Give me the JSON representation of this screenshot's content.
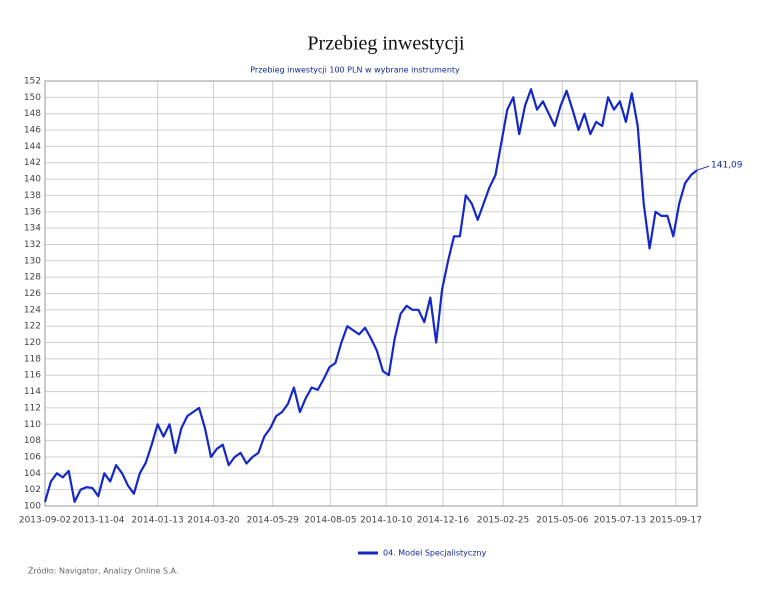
{
  "chart_data": {
    "type": "line",
    "title": "Przebieg inwestycji",
    "subtitle": "Przebieg inwestycji 100 PLN w wybrane instrumenty",
    "source": "Źródło: Navigator, Analizy Online S.A.",
    "end_label": "141,09",
    "x": [
      "2013-09-02",
      "2013-09-09",
      "2013-09-16",
      "2013-09-23",
      "2013-09-30",
      "2013-10-07",
      "2013-10-14",
      "2013-10-21",
      "2013-10-28",
      "2013-11-04",
      "2013-11-11",
      "2013-11-18",
      "2013-11-25",
      "2013-12-02",
      "2013-12-09",
      "2013-12-16",
      "2013-12-23",
      "2013-12-30",
      "2014-01-06",
      "2014-01-13",
      "2014-01-20",
      "2014-01-27",
      "2014-02-03",
      "2014-02-10",
      "2014-02-17",
      "2014-02-24",
      "2014-03-03",
      "2014-03-10",
      "2014-03-17",
      "2014-03-24",
      "2014-03-31",
      "2014-04-07",
      "2014-04-14",
      "2014-04-21",
      "2014-04-28",
      "2014-05-05",
      "2014-05-12",
      "2014-05-19",
      "2014-05-26",
      "2014-06-02",
      "2014-06-09",
      "2014-06-16",
      "2014-06-23",
      "2014-06-30",
      "2014-07-07",
      "2014-07-14",
      "2014-07-21",
      "2014-07-28",
      "2014-08-04",
      "2014-08-11",
      "2014-08-18",
      "2014-08-25",
      "2014-09-01",
      "2014-09-08",
      "2014-09-15",
      "2014-09-22",
      "2014-09-29",
      "2014-10-06",
      "2014-10-13",
      "2014-10-20",
      "2014-10-27",
      "2014-11-03",
      "2014-11-10",
      "2014-11-17",
      "2014-11-24",
      "2014-12-01",
      "2014-12-08",
      "2014-12-15",
      "2014-12-22",
      "2014-12-29",
      "2015-01-05",
      "2015-01-12",
      "2015-01-19",
      "2015-01-26",
      "2015-02-02",
      "2015-02-09",
      "2015-02-16",
      "2015-02-23",
      "2015-03-02",
      "2015-03-09",
      "2015-03-16",
      "2015-03-23",
      "2015-03-30",
      "2015-04-06",
      "2015-04-13",
      "2015-04-20",
      "2015-04-27",
      "2015-05-04",
      "2015-05-11",
      "2015-05-18",
      "2015-05-25",
      "2015-06-01",
      "2015-06-08",
      "2015-06-15",
      "2015-06-22",
      "2015-06-29",
      "2015-07-06",
      "2015-07-13",
      "2015-07-20",
      "2015-07-27",
      "2015-08-03",
      "2015-08-10",
      "2015-08-17",
      "2015-08-24",
      "2015-08-31",
      "2015-09-07",
      "2015-09-14",
      "2015-09-21",
      "2015-09-28",
      "2015-10-05",
      "2015-10-12"
    ],
    "series": [
      {
        "name": "04. Model Specjalistyczny",
        "color": "#1428c8",
        "values": [
          100.5,
          103,
          104,
          103.5,
          104.3,
          100.5,
          102,
          102.3,
          102.2,
          101.2,
          104,
          103,
          105,
          104,
          102.5,
          101.5,
          104,
          105.3,
          107.5,
          110,
          108.5,
          110,
          106.5,
          109.5,
          111,
          111.5,
          112,
          109.5,
          106,
          107,
          107.5,
          105,
          106,
          106.5,
          105.2,
          106,
          106.5,
          108.5,
          109.5,
          111,
          111.5,
          112.5,
          114.5,
          111.5,
          113.2,
          114.5,
          114.2,
          115.5,
          117,
          117.5,
          120,
          122,
          121.5,
          121,
          121.8,
          120.5,
          119,
          116.5,
          116,
          120.5,
          123.5,
          124.5,
          124,
          124,
          122.5,
          125.5,
          120,
          126.5,
          130,
          133,
          133,
          138,
          137,
          135,
          137,
          139,
          140.5,
          144.5,
          148.5,
          150,
          145.5,
          149,
          151,
          148.5,
          149.5,
          148,
          146.5,
          149,
          150.8,
          148.5,
          146,
          148,
          145.5,
          147,
          146.5,
          150,
          148.5,
          149.5,
          147,
          150.5,
          146.5,
          137,
          131.5,
          136,
          135.5,
          135.5,
          133,
          137,
          139.5,
          140.5,
          141.09
        ]
      }
    ],
    "xlim": [
      "2013-09-02",
      "2015-10-12"
    ],
    "xticks": [
      "2013-09-02",
      "2013-11-04",
      "2014-01-13",
      "2014-03-20",
      "2014-05-29",
      "2014-08-05",
      "2014-10-10",
      "2014-12-16",
      "2015-02-25",
      "2015-05-06",
      "2015-07-13",
      "2015-09-17"
    ],
    "ylim": [
      100,
      152
    ],
    "yticks": [
      100,
      102,
      104,
      106,
      108,
      110,
      112,
      114,
      116,
      118,
      120,
      122,
      124,
      126,
      128,
      130,
      132,
      134,
      136,
      138,
      140,
      142,
      144,
      146,
      148,
      150,
      152
    ],
    "grid": true,
    "legend": "bottom"
  }
}
